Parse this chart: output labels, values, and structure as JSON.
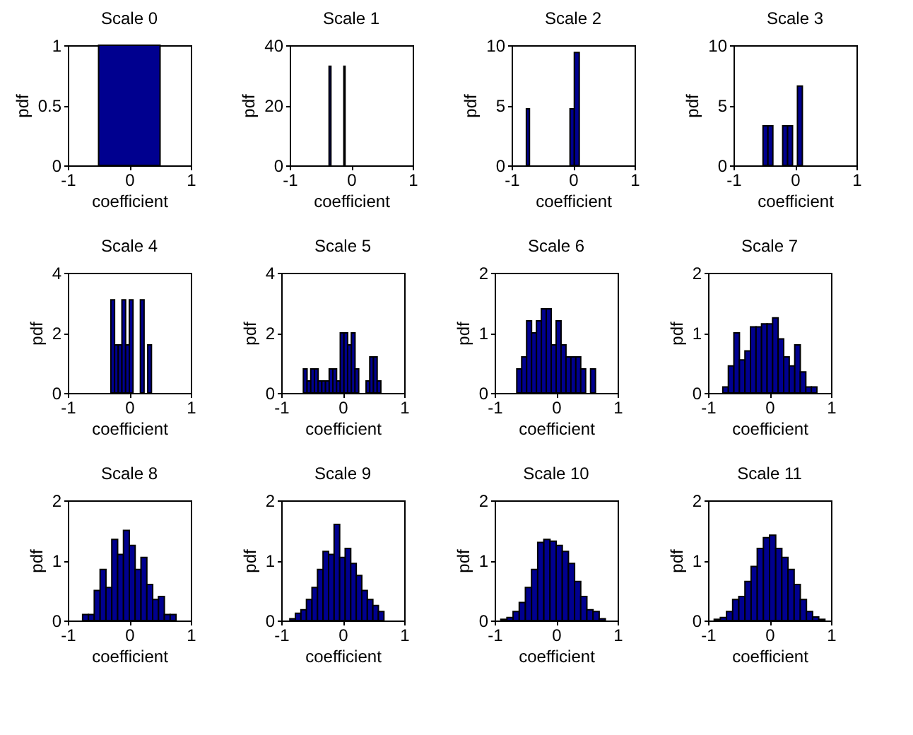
{
  "chart_data": [
    {
      "type": "histogram",
      "title": "Scale 0",
      "xlabel": "coefficient",
      "ylabel": "pdf",
      "color": "#00008f",
      "xlim": [
        -1,
        1
      ],
      "xticks": [
        -1,
        0,
        1
      ],
      "ylim": [
        0,
        1
      ],
      "yticks": [
        0,
        0.5,
        1
      ],
      "bins": [
        -0.5,
        0.5
      ],
      "values": [
        1
      ]
    },
    {
      "type": "histogram",
      "title": "Scale 1",
      "xlabel": "coefficient",
      "ylabel": "pdf",
      "color": "#00008f",
      "xlim": [
        -1,
        1
      ],
      "xticks": [
        -1,
        0,
        1
      ],
      "ylim": [
        0,
        40
      ],
      "yticks": [
        0,
        20,
        40
      ],
      "bins": [
        -0.36,
        -0.33,
        -0.12,
        -0.1
      ],
      "values": [
        33,
        0,
        33
      ]
    },
    {
      "type": "histogram",
      "title": "Scale 2",
      "xlabel": "coefficient",
      "ylabel": "pdf",
      "color": "#00008f",
      "xlim": [
        -1,
        1
      ],
      "xticks": [
        -1,
        0,
        1
      ],
      "ylim": [
        0,
        10
      ],
      "yticks": [
        0,
        5,
        10
      ],
      "bins": [
        -0.76,
        -0.71,
        -0.05,
        0.02,
        0.1
      ],
      "values": [
        4.7,
        0,
        4.7,
        9.4
      ]
    },
    {
      "type": "histogram",
      "title": "Scale 3",
      "xlabel": "coefficient",
      "ylabel": "pdf",
      "color": "#00008f",
      "xlim": [
        -1,
        1
      ],
      "xticks": [
        -1,
        0,
        1
      ],
      "ylim": [
        0,
        10
      ],
      "yticks": [
        0,
        5,
        10
      ],
      "bins": [
        -0.52,
        -0.44,
        -0.36,
        -0.28,
        -0.2,
        -0.12,
        -0.04,
        0.04,
        0.12
      ],
      "values": [
        3.3,
        3.3,
        0,
        0,
        3.3,
        3.3,
        0,
        6.6
      ]
    },
    {
      "type": "histogram",
      "title": "Scale 4",
      "xlabel": "coefficient",
      "ylabel": "pdf",
      "color": "#00008f",
      "xlim": [
        -1,
        1
      ],
      "xticks": [
        -1,
        0,
        1
      ],
      "ylim": [
        0,
        4
      ],
      "yticks": [
        0,
        2,
        4
      ],
      "bins": [
        -0.3,
        -0.24,
        -0.18,
        -0.12,
        -0.06,
        0,
        0.06,
        0.12,
        0.18,
        0.24,
        0.3,
        0.36
      ],
      "values": [
        3.1,
        1.6,
        1.6,
        3.1,
        1.6,
        3.1,
        0,
        0,
        3.1,
        0,
        1.6
      ]
    },
    {
      "type": "histogram",
      "title": "Scale 5",
      "xlabel": "coefficient",
      "ylabel": "pdf",
      "color": "#00008f",
      "xlim": [
        -1,
        1
      ],
      "xticks": [
        -1,
        0,
        1
      ],
      "ylim": [
        0,
        4
      ],
      "yticks": [
        0,
        2,
        4
      ],
      "bins": [
        -0.64,
        -0.58,
        -0.52,
        -0.46,
        -0.4,
        -0.34,
        -0.28,
        -0.22,
        -0.16,
        -0.1,
        -0.04,
        0.02,
        0.08,
        0.14,
        0.2,
        0.26,
        0.32,
        0.38,
        0.44,
        0.5,
        0.56,
        0.62
      ],
      "values": [
        0.8,
        0.4,
        0.8,
        0.8,
        0.4,
        0.4,
        0.4,
        0.8,
        0.8,
        0.4,
        2.0,
        2.0,
        1.6,
        2.0,
        0.8,
        0,
        0,
        0.4,
        1.2,
        1.2,
        0.4
      ]
    },
    {
      "type": "histogram",
      "title": "Scale 6",
      "xlabel": "coefficient",
      "ylabel": "pdf",
      "color": "#00008f",
      "xlim": [
        -1,
        1
      ],
      "xticks": [
        -1,
        0,
        1
      ],
      "ylim": [
        0,
        2
      ],
      "yticks": [
        0,
        1,
        2
      ],
      "bins": [
        -0.64,
        -0.56,
        -0.48,
        -0.4,
        -0.32,
        -0.24,
        -0.16,
        -0.08,
        0,
        0.08,
        0.16,
        0.24,
        0.32,
        0.4,
        0.48,
        0.56,
        0.64
      ],
      "values": [
        0.4,
        0.6,
        1.2,
        1.0,
        1.2,
        1.4,
        1.4,
        0.8,
        1.2,
        0.8,
        0.6,
        0.6,
        0.6,
        0.4,
        0,
        0.4
      ]
    },
    {
      "type": "histogram",
      "title": "Scale 7",
      "xlabel": "coefficient",
      "ylabel": "pdf",
      "color": "#00008f",
      "xlim": [
        -1,
        1
      ],
      "xticks": [
        -1,
        0,
        1
      ],
      "ylim": [
        0,
        2
      ],
      "yticks": [
        0,
        1,
        2
      ],
      "bins": [
        -0.76,
        -0.67,
        -0.58,
        -0.49,
        -0.4,
        -0.31,
        -0.22,
        -0.13,
        -0.04,
        0.05,
        0.14,
        0.23,
        0.32,
        0.41,
        0.5,
        0.59,
        0.68,
        0.77
      ],
      "values": [
        0.1,
        0.45,
        1.0,
        0.55,
        0.7,
        1.1,
        1.1,
        1.15,
        1.15,
        1.25,
        0.9,
        0.6,
        0.45,
        0.8,
        0.35,
        0.1,
        0.1
      ]
    },
    {
      "type": "histogram",
      "title": "Scale 8",
      "xlabel": "coefficient",
      "ylabel": "pdf",
      "color": "#00008f",
      "xlim": [
        -1,
        1
      ],
      "xticks": [
        -1,
        0,
        1
      ],
      "ylim": [
        0,
        2
      ],
      "yticks": [
        0,
        1,
        2
      ],
      "bins": [
        -0.76,
        -0.665,
        -0.57,
        -0.475,
        -0.38,
        -0.285,
        -0.19,
        -0.095,
        0,
        0.095,
        0.19,
        0.285,
        0.38,
        0.475,
        0.57,
        0.665,
        0.76
      ],
      "values": [
        0.1,
        0.1,
        0.5,
        0.85,
        0.55,
        1.35,
        1.1,
        1.5,
        1.25,
        0.85,
        1.05,
        0.6,
        0.35,
        0.4,
        0.1,
        0.1
      ]
    },
    {
      "type": "histogram",
      "title": "Scale 9",
      "xlabel": "coefficient",
      "ylabel": "pdf",
      "color": "#00008f",
      "xlim": [
        -1,
        1
      ],
      "xticks": [
        -1,
        0,
        1
      ],
      "ylim": [
        0,
        2
      ],
      "yticks": [
        0,
        1,
        2
      ],
      "bins": [
        -0.86,
        -0.77,
        -0.68,
        -0.59,
        -0.5,
        -0.41,
        -0.32,
        -0.23,
        -0.14,
        -0.05,
        0.04,
        0.13,
        0.22,
        0.31,
        0.4,
        0.49,
        0.58,
        0.67
      ],
      "values": [
        0.03,
        0.12,
        0.18,
        0.35,
        0.55,
        0.85,
        1.15,
        1.1,
        1.6,
        1.05,
        1.2,
        0.95,
        0.75,
        0.5,
        0.35,
        0.25,
        0.15
      ]
    },
    {
      "type": "histogram",
      "title": "Scale 10",
      "xlabel": "coefficient",
      "ylabel": "pdf",
      "color": "#00008f",
      "xlim": [
        -1,
        1
      ],
      "xticks": [
        -1,
        0,
        1
      ],
      "ylim": [
        0,
        2
      ],
      "yticks": [
        0,
        1,
        2
      ],
      "bins": [
        -0.9,
        -0.8,
        -0.7,
        -0.6,
        -0.5,
        -0.4,
        -0.3,
        -0.2,
        -0.1,
        0,
        0.1,
        0.2,
        0.3,
        0.4,
        0.5,
        0.6,
        0.7,
        0.8
      ],
      "values": [
        0.02,
        0.05,
        0.15,
        0.3,
        0.55,
        0.85,
        1.3,
        1.35,
        1.32,
        1.25,
        1.15,
        0.95,
        0.65,
        0.4,
        0.18,
        0.15,
        0.03
      ]
    },
    {
      "type": "histogram",
      "title": "Scale 11",
      "xlabel": "coefficient",
      "ylabel": "pdf",
      "color": "#00008f",
      "xlim": [
        -1,
        1
      ],
      "xticks": [
        -1,
        0,
        1
      ],
      "ylim": [
        0,
        2
      ],
      "yticks": [
        0,
        1,
        2
      ],
      "bins": [
        -0.9,
        -0.8,
        -0.7,
        -0.6,
        -0.5,
        -0.4,
        -0.3,
        -0.2,
        -0.1,
        0,
        0.1,
        0.2,
        0.3,
        0.4,
        0.5,
        0.6,
        0.7,
        0.8,
        0.9
      ],
      "values": [
        0.02,
        0.05,
        0.15,
        0.35,
        0.4,
        0.65,
        0.9,
        1.2,
        1.38,
        1.42,
        1.2,
        1.05,
        0.85,
        0.6,
        0.35,
        0.15,
        0.06,
        0.02
      ]
    }
  ]
}
